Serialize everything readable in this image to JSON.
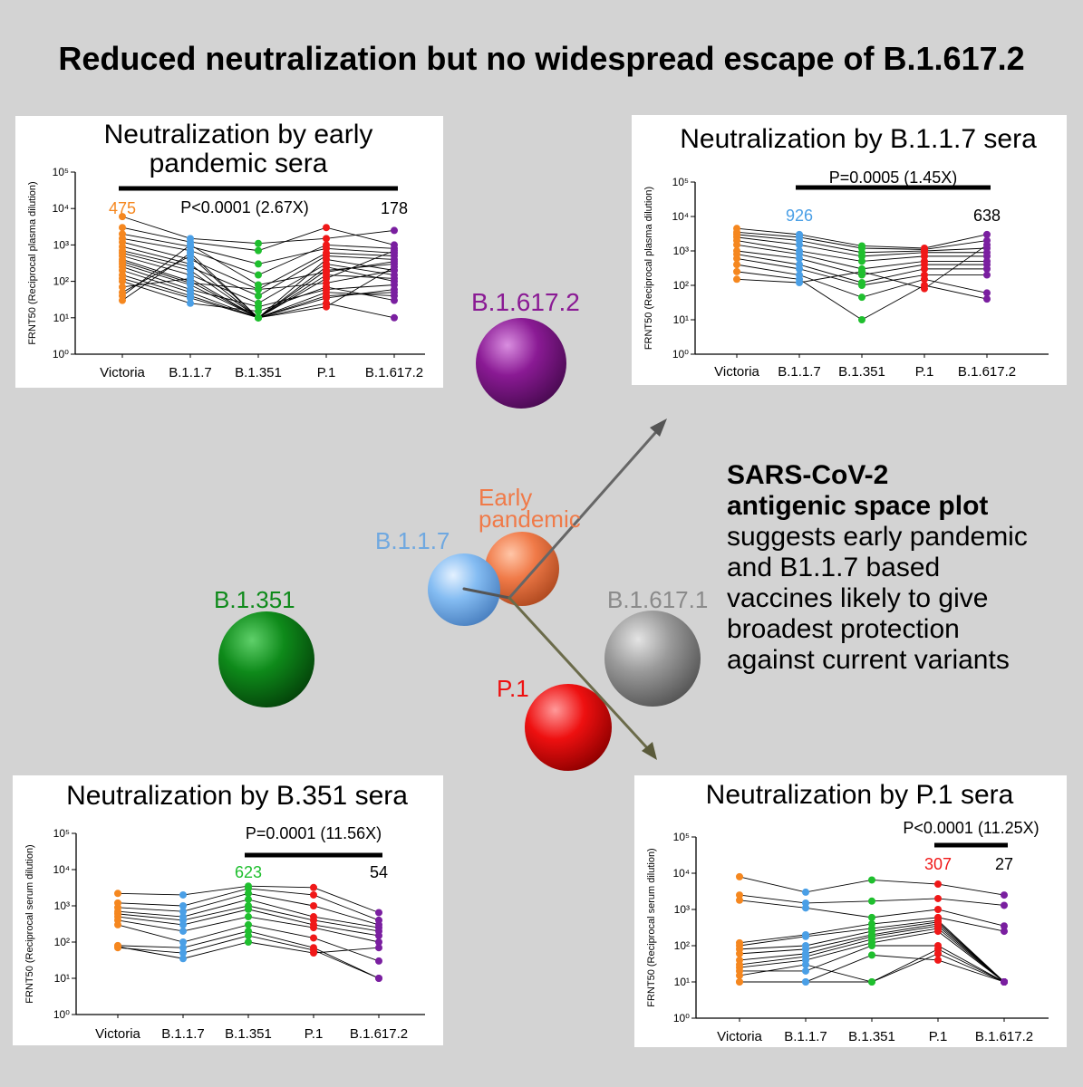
{
  "title": "Reduced neutralization but no widespread escape of B.1.617.2",
  "colors": {
    "Victoria": "#f5871f",
    "B.1.1.7": "#4a9fe6",
    "B.1.351": "#1fbf2e",
    "P.1": "#f01818",
    "B.1.617.2": "#7a1fa0"
  },
  "antigenic_space": {
    "labels": {
      "B.1.617.2": "B.1.617.2",
      "early_line1": "Early",
      "early_line2": "pandemic",
      "B.1.1.7": "B.1.1.7",
      "B.1.351": "B.1.351",
      "B.1.617.1": "B.1.617.1",
      "P.1": "P.1"
    },
    "sphere_colors": {
      "B.1.617.2": "#8a1a94",
      "Early pandemic": "#f07a48",
      "B.1.1.7": "#84bcf2",
      "B.1.351": "#0e8a1a",
      "B.1.617.1": "#9a9a9a",
      "P.1": "#ee1010"
    }
  },
  "description": {
    "bold_line1": "SARS-CoV-2",
    "bold_line2": "antigenic space plot",
    "lines": [
      "suggests early pandemic",
      "and B1.1.7 based",
      "vaccines likely to give",
      "broadest protection",
      "against current variants"
    ]
  },
  "chart_data": [
    {
      "type": "scatter",
      "title": "Neutralization by early pandemic sera",
      "title_lines": [
        "Neutralization by early",
        "pandemic sera"
      ],
      "ylabel": "FRNT50 (Reciprocal plasma dilution)",
      "y_scale": "log",
      "ylim": [
        1,
        100000
      ],
      "yticks": [
        "10⁰",
        "10¹",
        "10²",
        "10³",
        "10⁴",
        "10⁵"
      ],
      "categories": [
        "Victoria",
        "B.1.1.7",
        "B.1.351",
        "P.1",
        "B.1.617.2"
      ],
      "bar_text": "P<0.0001 (2.67X)",
      "bar_from": "Victoria",
      "bar_to": "B.1.617.2",
      "medians": [
        {
          "category": "Victoria",
          "text": "475",
          "color": "#f5871f"
        },
        {
          "category": "B.1.617.2",
          "text": "178",
          "color": "#000000"
        }
      ],
      "series": [
        {
          "values": [
            6000,
            1500,
            1100,
            1500,
            2500
          ]
        },
        {
          "values": [
            3000,
            1200,
            700,
            3000,
            1000
          ]
        },
        {
          "values": [
            2000,
            900,
            300,
            800,
            600
          ]
        },
        {
          "values": [
            1500,
            700,
            150,
            1000,
            800
          ]
        },
        {
          "values": [
            1200,
            400,
            60,
            600,
            500
          ]
        },
        {
          "values": [
            900,
            300,
            10,
            200,
            300
          ]
        },
        {
          "values": [
            700,
            250,
            40,
            500,
            400
          ]
        },
        {
          "values": [
            600,
            200,
            10,
            400,
            200
          ]
        },
        {
          "values": [
            500,
            150,
            25,
            300,
            150
          ]
        },
        {
          "values": [
            400,
            100,
            10,
            150,
            120
          ]
        },
        {
          "values": [
            350,
            90,
            60,
            90,
            200
          ]
        },
        {
          "values": [
            300,
            80,
            10,
            250,
            100
          ]
        },
        {
          "values": [
            250,
            60,
            20,
            60,
            80
          ]
        },
        {
          "values": [
            200,
            50,
            10,
            50,
            40
          ]
        },
        {
          "values": [
            150,
            40,
            10,
            35,
            60
          ]
        },
        {
          "values": [
            120,
            35,
            10,
            25,
            10
          ]
        },
        {
          "values": [
            100,
            25,
            15,
            70,
            30
          ]
        },
        {
          "values": [
            70,
            120,
            10,
            40,
            50
          ]
        },
        {
          "values": [
            50,
            500,
            10,
            120,
            700
          ]
        },
        {
          "values": [
            40,
            1000,
            80,
            180,
            350
          ]
        },
        {
          "values": [
            30,
            600,
            10,
            20,
            250
          ]
        }
      ]
    },
    {
      "type": "scatter",
      "title": "Neutralization by B.1.1.7 sera",
      "title_lines": [
        "Neutralization by B.1.1.7 sera"
      ],
      "ylabel": "FRNT50 (Reciprocal plasma dilution)",
      "y_scale": "log",
      "ylim": [
        1,
        100000
      ],
      "yticks": [
        "10⁰",
        "10¹",
        "10²",
        "10³",
        "10⁴",
        "10⁵"
      ],
      "categories": [
        "Victoria",
        "B.1.1.7",
        "B.1.351",
        "P.1",
        "B.1.617.2"
      ],
      "bar_text": "P=0.0005 (1.45X)",
      "bar_from": "B.1.1.7",
      "bar_to": "B.1.617.2",
      "medians": [
        {
          "category": "B.1.1.7",
          "text": "926",
          "color": "#4a9fe6"
        },
        {
          "category": "B.1.617.2",
          "text": "638",
          "color": "#000000"
        }
      ],
      "series": [
        {
          "values": [
            4500,
            3000,
            1400,
            1200,
            3000
          ]
        },
        {
          "values": [
            3500,
            2500,
            1200,
            1100,
            2000
          ]
        },
        {
          "values": [
            3000,
            2000,
            900,
            1000,
            1200
          ]
        },
        {
          "values": [
            2500,
            1500,
            700,
            900,
            900
          ]
        },
        {
          "values": [
            2000,
            1000,
            500,
            700,
            700
          ]
        },
        {
          "values": [
            1500,
            800,
            300,
            500,
            500
          ]
        },
        {
          "values": [
            1000,
            600,
            200,
            400,
            400
          ]
        },
        {
          "values": [
            800,
            400,
            120,
            300,
            300
          ]
        },
        {
          "values": [
            600,
            300,
            100,
            200,
            200
          ]
        },
        {
          "values": [
            400,
            200,
            45,
            150,
            60
          ]
        },
        {
          "values": [
            250,
            150,
            10,
            100,
            40
          ]
        },
        {
          "values": [
            150,
            120,
            250,
            80,
            1500
          ]
        }
      ]
    },
    {
      "type": "scatter",
      "title": "Neutralization by B.351 sera",
      "title_lines": [
        "Neutralization by B.351 sera"
      ],
      "ylabel": "FRNT50 (Reciprocal serum dilution)",
      "y_scale": "log",
      "ylim": [
        1,
        100000
      ],
      "yticks": [
        "10⁰",
        "10¹",
        "10²",
        "10³",
        "10⁴",
        "10⁵"
      ],
      "categories": [
        "Victoria",
        "B.1.1.7",
        "B.1.351",
        "P.1",
        "B.1.617.2"
      ],
      "bar_text": "P=0.0001 (11.56X)",
      "bar_from": "B.1.351",
      "bar_to": "B.1.617.2",
      "medians": [
        {
          "category": "B.1.351",
          "text": "623",
          "color": "#1fbf2e"
        },
        {
          "category": "B.1.617.2",
          "text": "54",
          "color": "#000000"
        }
      ],
      "series": [
        {
          "values": [
            2200,
            2000,
            3500,
            3200,
            650
          ]
        },
        {
          "values": [
            1200,
            1000,
            3000,
            2000,
            400
          ]
        },
        {
          "values": [
            900,
            700,
            2200,
            1000,
            300
          ]
        },
        {
          "values": [
            700,
            500,
            1500,
            500,
            250
          ]
        },
        {
          "values": [
            600,
            400,
            1000,
            400,
            200
          ]
        },
        {
          "values": [
            500,
            300,
            800,
            300,
            150
          ]
        },
        {
          "values": [
            400,
            200,
            500,
            250,
            100
          ]
        },
        {
          "values": [
            300,
            100,
            300,
            130,
            30
          ]
        },
        {
          "values": [
            80,
            70,
            200,
            70,
            10
          ]
        },
        {
          "values": [
            70,
            50,
            150,
            60,
            10
          ]
        },
        {
          "values": [
            75,
            35,
            100,
            50,
            70
          ]
        }
      ]
    },
    {
      "type": "scatter",
      "title": "Neutralization by P.1 sera",
      "title_lines": [
        "Neutralization by P.1 sera"
      ],
      "ylabel": "FRNT50 (Reciprocal serum dilution)",
      "y_scale": "log",
      "ylim": [
        1,
        100000
      ],
      "yticks": [
        "10⁰",
        "10¹",
        "10²",
        "10³",
        "10⁴",
        "10⁵"
      ],
      "categories": [
        "Victoria",
        "B.1.1.7",
        "B.1.351",
        "P.1",
        "B.1.617.2"
      ],
      "bar_text": "P<0.0001 (11.25X)",
      "bar_from": "P.1",
      "bar_to": "B.1.617.2",
      "medians": [
        {
          "category": "P.1",
          "text": "307",
          "color": "#f01818"
        },
        {
          "category": "B.1.617.2",
          "text": "27",
          "color": "#000000"
        }
      ],
      "series": [
        {
          "values": [
            8000,
            3000,
            6500,
            5000,
            2500
          ]
        },
        {
          "values": [
            2500,
            1500,
            1700,
            2000,
            1300
          ]
        },
        {
          "values": [
            1800,
            1100,
            600,
            1000,
            350
          ]
        },
        {
          "values": [
            120,
            200,
            400,
            600,
            250
          ]
        },
        {
          "values": [
            100,
            180,
            300,
            500,
            10
          ]
        },
        {
          "values": [
            80,
            100,
            250,
            450,
            10
          ]
        },
        {
          "values": [
            60,
            80,
            200,
            400,
            10
          ]
        },
        {
          "values": [
            40,
            60,
            180,
            350,
            10
          ]
        },
        {
          "values": [
            30,
            50,
            150,
            300,
            10
          ]
        },
        {
          "values": [
            25,
            40,
            120,
            250,
            10
          ]
        },
        {
          "values": [
            20,
            20,
            100,
            100,
            10
          ]
        },
        {
          "values": [
            10,
            10,
            10,
            60,
            10
          ]
        },
        {
          "values": [
            10,
            10,
            55,
            40,
            10
          ]
        },
        {
          "values": [
            15,
            30,
            10,
            80,
            10
          ]
        }
      ]
    }
  ]
}
